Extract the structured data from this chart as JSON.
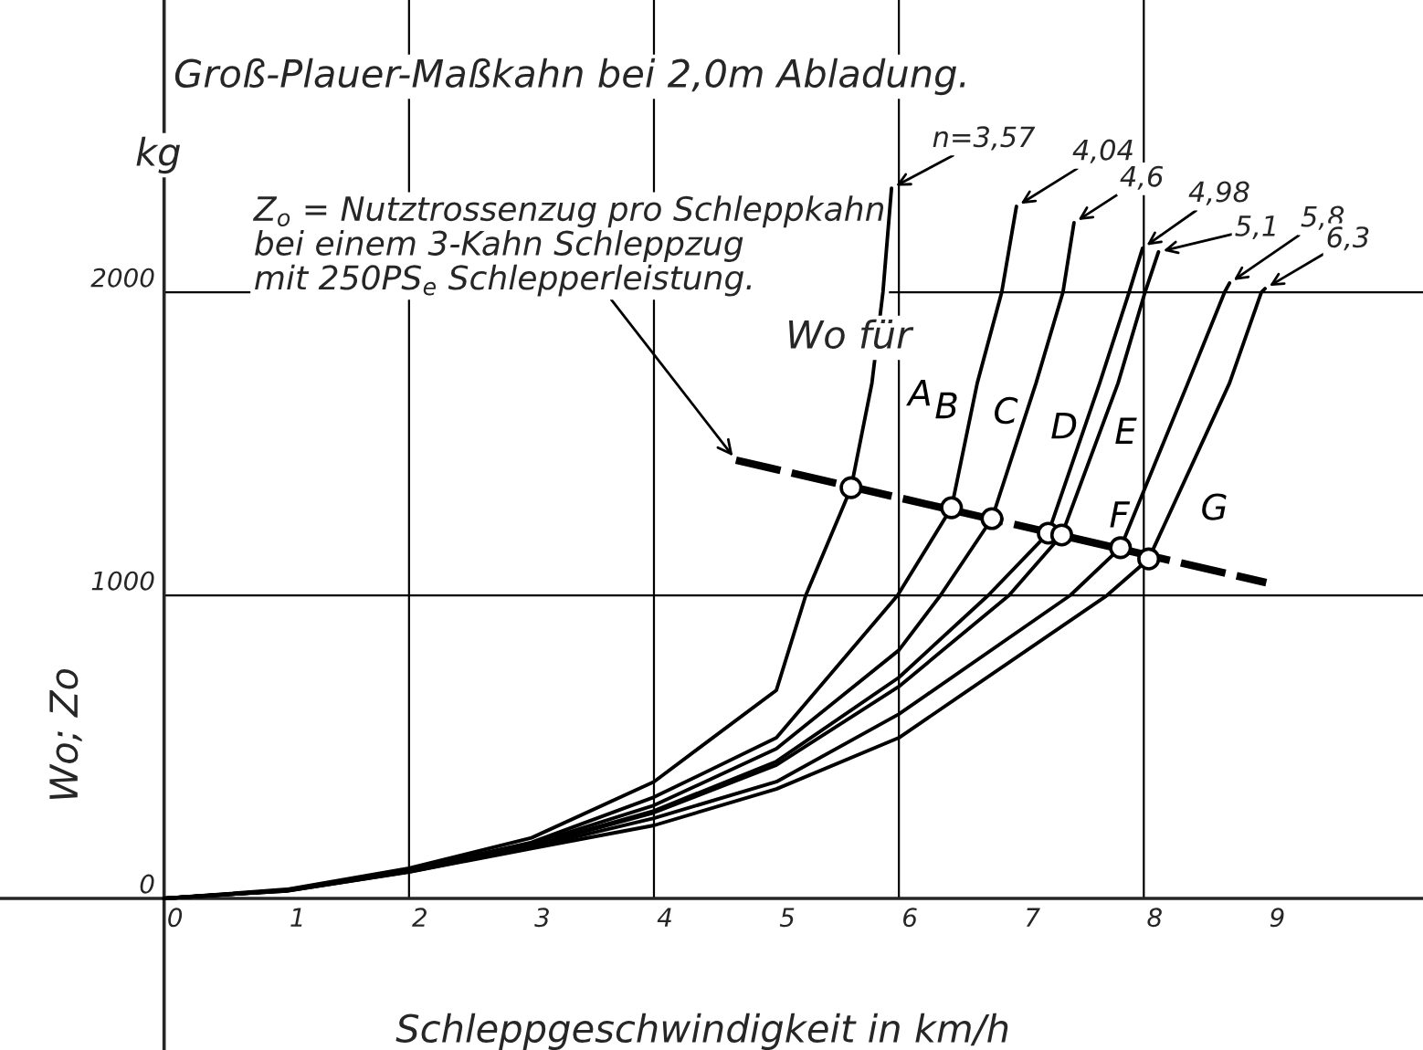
{
  "chart_data": {
    "type": "line",
    "title": "Groß-Plauer-Maßkahn bei 2,0m Abladung.",
    "xlabel": "Schleppgeschwindigkeit in km/h",
    "ylabel": "Wo; Zo",
    "xlim": [
      -1.34,
      10.28
    ],
    "ylim": [
      -500,
      2964
    ],
    "xticks": [
      0,
      1,
      2,
      3,
      4,
      5,
      6,
      7,
      8,
      9
    ],
    "yticks": [
      0,
      1000,
      2000
    ],
    "grid": false,
    "marker": "none",
    "line_style": "solid",
    "series": [
      {
        "name": "A",
        "color": "#000000",
        "x": [
          0,
          1,
          2,
          3,
          4,
          5,
          5.24,
          5.61,
          5.78,
          5.87,
          5.94
        ],
        "values": [
          0,
          30,
          100,
          200,
          385,
          687,
          1000,
          1355,
          1700,
          2000,
          2343
        ]
      },
      {
        "name": "B",
        "color": "#000000",
        "x": [
          0,
          1,
          2,
          3,
          4,
          5,
          5.99,
          6.43,
          6.64,
          6.84,
          6.96
        ],
        "values": [
          0,
          28,
          95,
          185,
          334,
          530,
          1000,
          1289,
          1700,
          2000,
          2283
        ]
      },
      {
        "name": "C",
        "color": "#000000",
        "x": [
          0,
          1,
          2,
          3,
          4,
          5,
          6,
          6.34,
          6.76,
          7.12,
          7.34,
          7.43
        ],
        "values": [
          0,
          27,
          92,
          180,
          307,
          494,
          819,
          1000,
          1253,
          1700,
          2000,
          2229
        ]
      },
      {
        "name": "D",
        "color": "#000000",
        "x": [
          0,
          1,
          2,
          3,
          4,
          5,
          6,
          6.73,
          7.22,
          7.64,
          7.88,
          7.99
        ],
        "values": [
          0,
          26,
          90,
          175,
          289,
          452,
          729,
          1000,
          1205,
          1700,
          2000,
          2145
        ]
      },
      {
        "name": "E",
        "color": "#000000",
        "x": [
          0,
          1,
          2,
          3,
          4,
          5,
          6,
          6.9,
          7.33,
          7.79,
          8.01,
          8.12
        ],
        "values": [
          0,
          26,
          90,
          173,
          283,
          440,
          699,
          1000,
          1199,
          1700,
          2000,
          2133
        ]
      },
      {
        "name": "F",
        "color": "#000000",
        "x": [
          0,
          1,
          2,
          3,
          4,
          5,
          6,
          7.4,
          7.81,
          8.36,
          8.66,
          8.7
        ],
        "values": [
          0,
          25,
          88,
          168,
          265,
          385,
          608,
          1000,
          1157,
          1700,
          2000,
          2030
        ]
      },
      {
        "name": "G",
        "color": "#000000",
        "x": [
          0,
          1,
          2,
          3,
          4,
          5,
          6,
          7.7,
          8.04,
          8.7,
          8.96,
          8.99
        ],
        "values": [
          0,
          25,
          87,
          165,
          241,
          361,
          530,
          1000,
          1120,
          1700,
          2000,
          2012
        ]
      },
      {
        "color": "#000000",
        "x": [
          4.67,
          9.0
        ],
        "values": [
          1446,
          1042
        ],
        "line_style": "dashed"
      },
      {
        "type": "scatter",
        "color": "#000000",
        "marker": "circle",
        "x": [
          5.61,
          6.43,
          6.76,
          7.22,
          7.33,
          7.81,
          8.04
        ],
        "values": [
          1355,
          1289,
          1253,
          1205,
          1199,
          1157,
          1120
        ]
      }
    ],
    "ref_lines": [
      {
        "axis": "x",
        "value": 2,
        "color": "#000000"
      },
      {
        "axis": "x",
        "value": 4,
        "color": "#000000"
      },
      {
        "axis": "x",
        "value": 6,
        "color": "#000000"
      },
      {
        "axis": "x",
        "value": 8,
        "color": "#000000"
      },
      {
        "axis": "y",
        "value": 1000,
        "color": "#000000"
      },
      {
        "axis": "y",
        "value": 2000,
        "color": "#000000"
      }
    ],
    "annotations": [
      {
        "text": "n=3,57",
        "x": 5.94,
        "y": 2343
      },
      {
        "text": "4,04",
        "x": 6.96,
        "y": 2283
      },
      {
        "text": "4,6",
        "x": 7.43,
        "y": 2229
      },
      {
        "text": "4,98",
        "x": 7.99,
        "y": 2145
      },
      {
        "text": "5,1",
        "x": 8.12,
        "y": 2133
      },
      {
        "text": "5,8",
        "x": 8.7,
        "y": 2030
      },
      {
        "text": "6,3",
        "x": 8.99,
        "y": 2012
      },
      {
        "text": "Z$_{o}$ = Nutztrossenzug pro Schleppkahn\nbei einem 3-Kahn Schleppzug\nmit 250PS$_{e}$ Schlepperleistung.",
        "x": 4.67,
        "y": 1446
      },
      "Wo für",
      "kg"
    ]
  }
}
